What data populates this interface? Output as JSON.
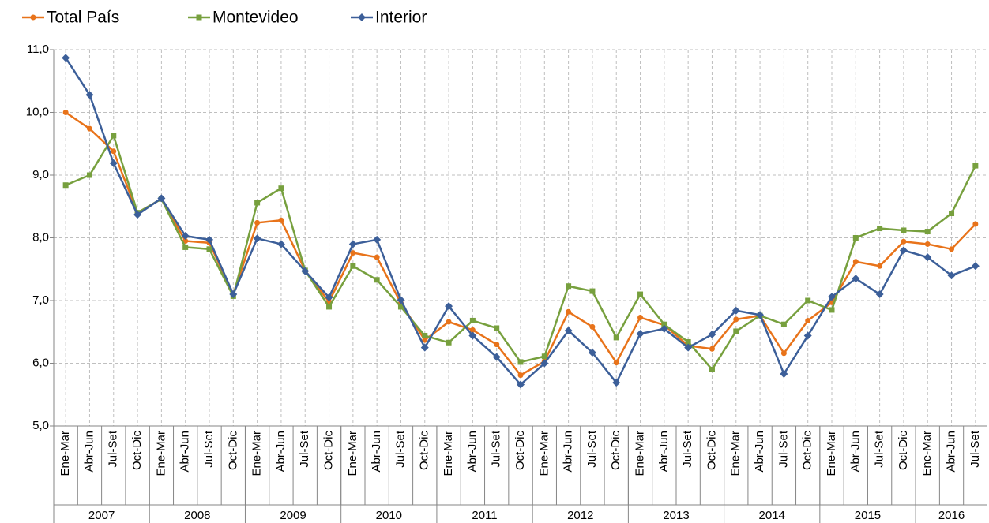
{
  "chart_data": {
    "type": "line",
    "categories": [
      "Ene-Mar",
      "Abr-Jun",
      "Jul-Set",
      "Oct-Dic",
      "Ene-Mar",
      "Abr-Jun",
      "Jul-Set",
      "Oct-Dic",
      "Ene-Mar",
      "Abr-Jun",
      "Jul-Set",
      "Oct-Dic",
      "Ene-Mar",
      "Abr-Jun",
      "Jul-Set",
      "Oct-Dic",
      "Ene-Mar",
      "Abr-Jun",
      "Jul-Set",
      "Oct-Dic",
      "Ene-Mar",
      "Abr-Jun",
      "Jul-Set",
      "Oct-Dic",
      "Ene-Mar",
      "Abr-Jun",
      "Jul-Set",
      "Oct-Dic",
      "Ene-Mar",
      "Abr-Jun",
      "Jul-Set",
      "Oct-Dic",
      "Ene-Mar",
      "Abr-Jun",
      "Jul-Set",
      "Oct-Dic",
      "Ene-Mar",
      "Abr-Jun",
      "Jul-Set"
    ],
    "category_groups": [
      {
        "label": "2007",
        "count": 4
      },
      {
        "label": "2008",
        "count": 4
      },
      {
        "label": "2009",
        "count": 4
      },
      {
        "label": "2010",
        "count": 4
      },
      {
        "label": "2011",
        "count": 4
      },
      {
        "label": "2012",
        "count": 4
      },
      {
        "label": "2013",
        "count": 4
      },
      {
        "label": "2014",
        "count": 4
      },
      {
        "label": "2015",
        "count": 4
      },
      {
        "label": "2016",
        "count": 3
      }
    ],
    "series": [
      {
        "name": "Total País",
        "color": "#e8731a",
        "marker": "circle",
        "values": [
          10.0,
          9.74,
          9.38,
          8.4,
          8.62,
          7.95,
          7.92,
          7.1,
          8.24,
          8.28,
          7.48,
          6.98,
          7.76,
          7.69,
          6.96,
          6.37,
          6.66,
          6.53,
          6.3,
          5.81,
          6.03,
          6.82,
          6.58,
          6.01,
          6.73,
          6.61,
          6.28,
          6.23,
          6.7,
          6.76,
          6.16,
          6.68,
          6.97,
          7.62,
          7.55,
          7.94,
          7.9,
          7.82,
          8.22
        ]
      },
      {
        "name": "Montevideo",
        "color": "#77a03e",
        "marker": "square",
        "values": [
          8.84,
          9.0,
          9.63,
          8.4,
          8.62,
          7.85,
          7.82,
          7.07,
          8.56,
          8.79,
          7.48,
          6.9,
          7.55,
          7.33,
          6.9,
          6.44,
          6.33,
          6.68,
          6.56,
          6.02,
          6.11,
          7.23,
          7.15,
          6.41,
          7.1,
          6.62,
          6.34,
          5.9,
          6.51,
          6.76,
          6.62,
          7.0,
          6.85,
          8.0,
          8.15,
          8.12,
          8.1,
          8.39,
          9.15
        ]
      },
      {
        "name": "Interior",
        "color": "#3c5f99",
        "marker": "diamond",
        "values": [
          10.87,
          10.28,
          9.19,
          8.37,
          8.63,
          8.03,
          7.97,
          7.1,
          7.99,
          7.9,
          7.47,
          7.05,
          7.9,
          7.97,
          7.01,
          6.25,
          6.91,
          6.44,
          6.1,
          5.66,
          6.0,
          6.52,
          6.17,
          5.69,
          6.47,
          6.55,
          6.25,
          6.46,
          6.84,
          6.77,
          5.83,
          6.44,
          7.06,
          7.35,
          7.1,
          7.8,
          7.69,
          7.4,
          7.55
        ]
      }
    ],
    "ylim": [
      5,
      11
    ],
    "yticks": [
      {
        "value": 5,
        "label": "5,0"
      },
      {
        "value": 6,
        "label": "6,0"
      },
      {
        "value": 7,
        "label": "7,0"
      },
      {
        "value": 8,
        "label": "8,0"
      },
      {
        "value": 9,
        "label": "9,0"
      },
      {
        "value": 10,
        "label": "10,0"
      },
      {
        "value": 11,
        "label": "11,0"
      }
    ],
    "grid": true,
    "legend": "top-left"
  }
}
